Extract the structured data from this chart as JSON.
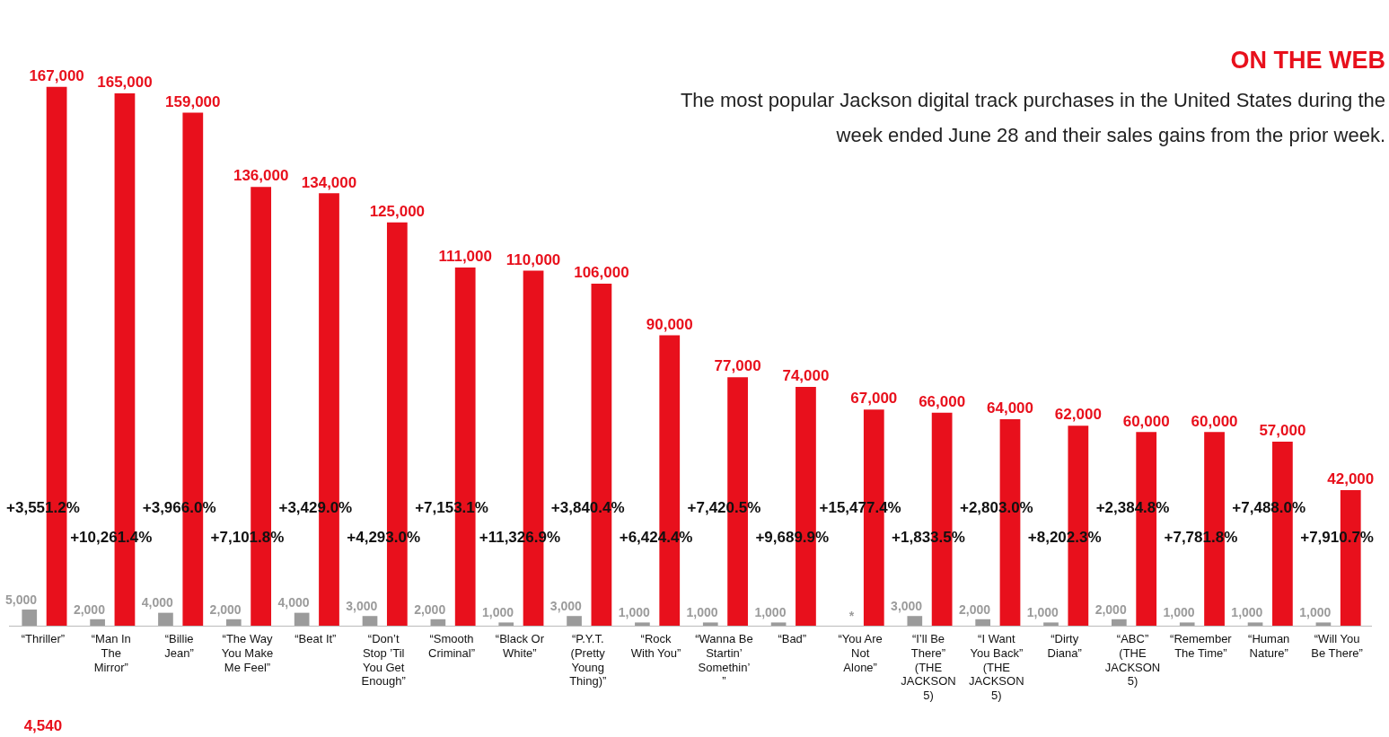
{
  "chart_data": {
    "type": "bar",
    "title": "ON THE WEB",
    "subtitle": "The most popular Jackson digital track purchases in the United States during the week ended June 28 and their sales gains from the prior week.",
    "categories": [
      "“Thriller”",
      "“Man In The Mirror”",
      "“Billie Jean”",
      "“The Way You Make Me Feel”",
      "“Beat It”",
      "“Don’t Stop ’Til You Get Enough”",
      "“Smooth Criminal”",
      "“Black Or White”",
      "“P.Y.T. (Pretty Young Thing)”",
      "“Rock With You”",
      "“Wanna Be Startin’ Somethin’ ”",
      "“Bad”",
      "“You Are Not Alone”",
      "“I’ll Be There” (THE JACKSON 5)",
      "“I Want You Back” (THE JACKSON 5)",
      "“Dirty Diana”",
      "“ABC” (THE JACKSON 5)",
      "“Remember The Time”",
      "“Human Nature”",
      "“Will You Be There”"
    ],
    "series": [
      {
        "color": "#9b9b9b",
        "values": [
          5000,
          2000,
          4000,
          2000,
          4000,
          3000,
          2000,
          1000,
          3000,
          1000,
          1000,
          1000,
          null,
          3000,
          2000,
          1000,
          2000,
          1000,
          1000,
          1000
        ],
        "value_labels": [
          "5,000",
          "2,000",
          "4,000",
          "2,000",
          "4,000",
          "3,000",
          "2,000",
          "1,000",
          "3,000",
          "1,000",
          "1,000",
          "1,000",
          "*",
          "3,000",
          "2,000",
          "1,000",
          "2,000",
          "1,000",
          "1,000",
          "1,000"
        ]
      },
      {
        "color": "#e8101c",
        "values": [
          167000,
          165000,
          159000,
          136000,
          134000,
          125000,
          111000,
          110000,
          106000,
          90000,
          77000,
          74000,
          67000,
          66000,
          64000,
          62000,
          60000,
          60000,
          57000,
          42000
        ],
        "value_labels": [
          "167,000",
          "165,000",
          "159,000",
          "136,000",
          "134,000",
          "125,000",
          "111,000",
          "110,000",
          "106,000",
          "90,000",
          "77,000",
          "74,000",
          "67,000",
          "66,000",
          "64,000",
          "62,000",
          "60,000",
          "60,000",
          "57,000",
          "42,000"
        ]
      }
    ],
    "annotations": [
      "+3,551.2%",
      "+10,261.4%",
      "+3,966.0%",
      "+7,101.8%",
      "+3,429.0%",
      "+4,293.0%",
      "+7,153.1%",
      "+11,326.9%",
      "+3,840.4%",
      "+6,424.4%",
      "+7,420.5%",
      "+9,689.9%",
      "+15,477.4%",
      "+1,833.5%",
      "+2,803.0%",
      "+8,202.3%",
      "+2,384.8%",
      "+7,781.8%",
      "+7,488.0%",
      "+7,910.7%",
      "4,540"
    ],
    "grid": false,
    "legend": false
  }
}
